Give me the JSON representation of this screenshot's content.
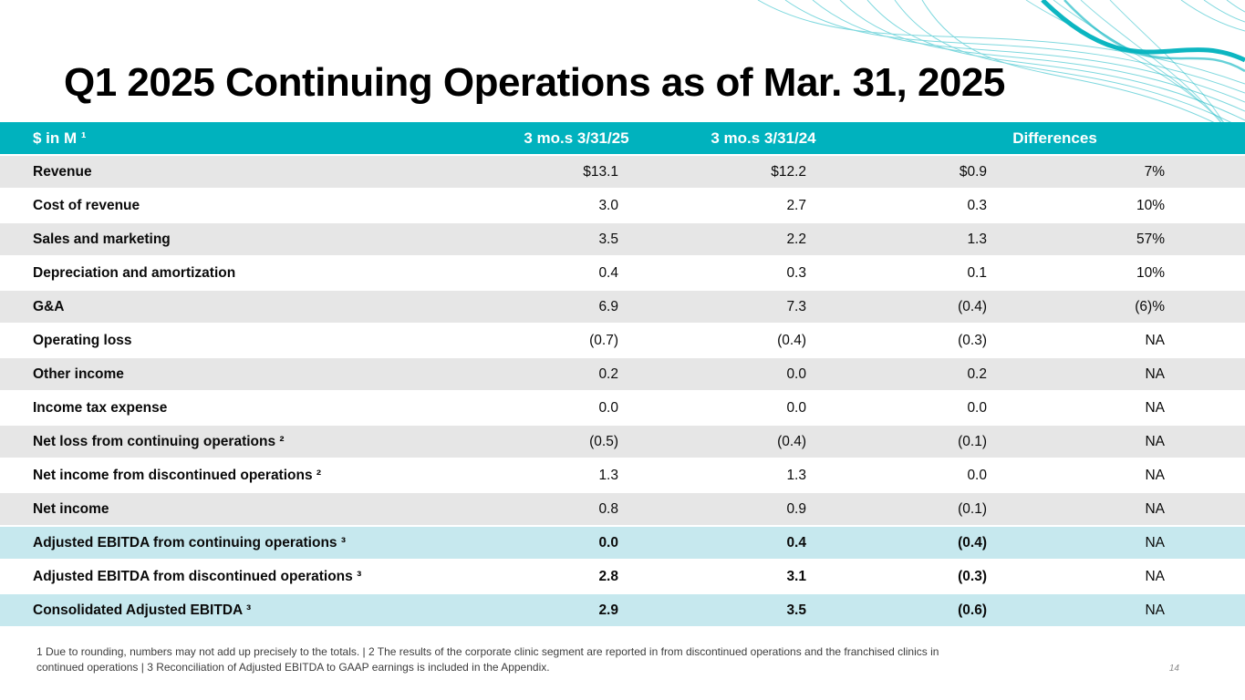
{
  "slide": {
    "title": "Q1 2025 Continuing Operations as of Mar. 31, 2025",
    "page_number": "14"
  },
  "table": {
    "headers": {
      "label": "$ in M ¹",
      "col_2025": "3 mo.s 3/31/25",
      "col_2024": "3 mo.s 3/31/24",
      "differences": "Differences"
    },
    "rows": [
      {
        "label": "Revenue",
        "v2025": "$13.1",
        "v2024": "$12.2",
        "diff": "$0.9",
        "pct": "7%",
        "bg": "gray",
        "bold_values": false
      },
      {
        "label": "Cost of revenue",
        "v2025": "3.0",
        "v2024": "2.7",
        "diff": "0.3",
        "pct": "10%",
        "bg": "white",
        "bold_values": false
      },
      {
        "label": "Sales and marketing",
        "v2025": "3.5",
        "v2024": "2.2",
        "diff": "1.3",
        "pct": "57%",
        "bg": "gray",
        "bold_values": false
      },
      {
        "label": "Depreciation and amortization",
        "v2025": "0.4",
        "v2024": "0.3",
        "diff": "0.1",
        "pct": "10%",
        "bg": "white",
        "bold_values": false
      },
      {
        "label": "G&A",
        "v2025": "6.9",
        "v2024": "7.3",
        "diff": "(0.4)",
        "pct": "(6)%",
        "bg": "gray",
        "bold_values": false
      },
      {
        "label": "Operating loss",
        "v2025": "(0.7)",
        "v2024": "(0.4)",
        "diff": "(0.3)",
        "pct": "NA",
        "bg": "white",
        "bold_values": false
      },
      {
        "label": "Other income",
        "v2025": "0.2",
        "v2024": "0.0",
        "diff": "0.2",
        "pct": "NA",
        "bg": "gray",
        "bold_values": false
      },
      {
        "label": "Income tax expense",
        "v2025": "0.0",
        "v2024": "0.0",
        "diff": "0.0",
        "pct": "NA",
        "bg": "white",
        "bold_values": false
      },
      {
        "label": "Net loss from continuing operations ²",
        "v2025": "(0.5)",
        "v2024": "(0.4)",
        "diff": "(0.1)",
        "pct": "NA",
        "bg": "gray",
        "bold_values": false
      },
      {
        "label": "Net income from discontinued operations ²",
        "v2025": "1.3",
        "v2024": "1.3",
        "diff": "0.0",
        "pct": "NA",
        "bg": "white",
        "bold_values": false
      },
      {
        "label": "Net income",
        "v2025": "0.8",
        "v2024": "0.9",
        "diff": "(0.1)",
        "pct": "NA",
        "bg": "gray",
        "bold_values": false
      },
      {
        "label": "Adjusted EBITDA from continuing operations ³",
        "v2025": "0.0",
        "v2024": "0.4",
        "diff": "(0.4)",
        "pct": "NA",
        "bg": "cyan",
        "bold_values": true
      },
      {
        "label": "Adjusted EBITDA from discontinued operations ³",
        "v2025": "2.8",
        "v2024": "3.1",
        "diff": "(0.3)",
        "pct": "NA",
        "bg": "white",
        "bold_values": true
      },
      {
        "label": "Consolidated Adjusted EBITDA ³",
        "v2025": "2.9",
        "v2024": "3.5",
        "diff": "(0.6)",
        "pct": "NA",
        "bg": "cyan",
        "bold_values": true
      }
    ]
  },
  "footnote": {
    "line1": "1 Due to rounding, numbers may not add up precisely to the totals. | 2 The results of the corporate clinic segment are reported in from discontinued operations and the franchised clinics in",
    "line2": "continued operations | 3 Reconciliation of Adjusted EBITDA to GAAP earnings is included in the Appendix."
  },
  "colors": {
    "header_teal": "#00B2BE",
    "row_gray": "#E6E6E6",
    "row_highlight": "#C6E8EE"
  }
}
